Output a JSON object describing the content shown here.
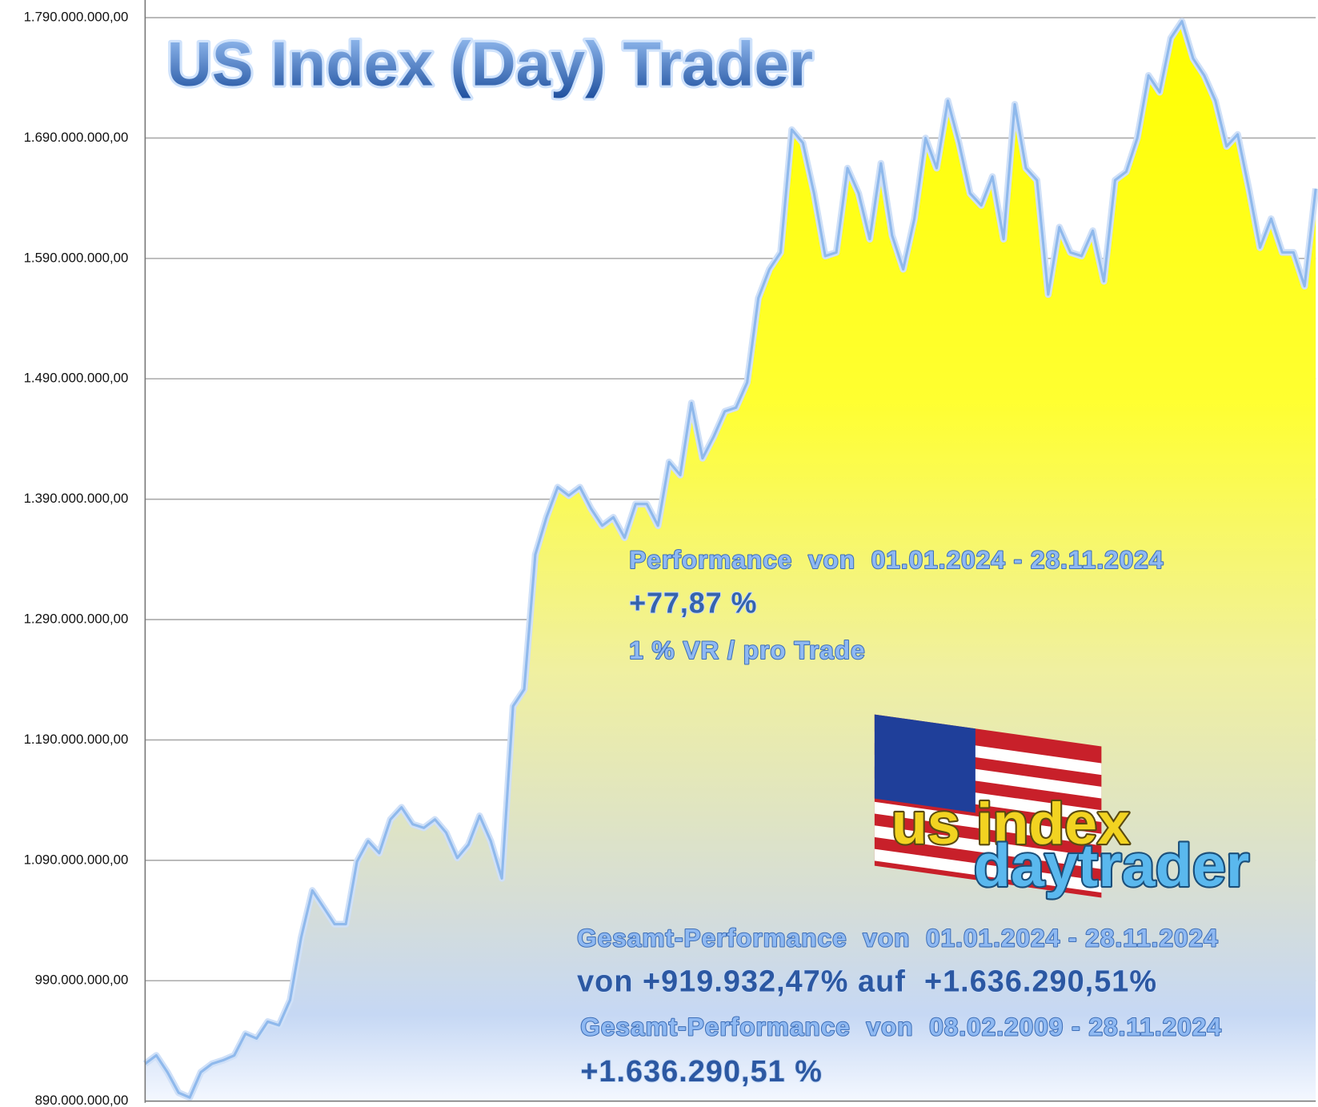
{
  "chart_data": {
    "type": "area",
    "title": "US Index (Day) Trader",
    "values": [
      921000000,
      928000000,
      914000000,
      897000000,
      893000000,
      914000000,
      921000000,
      924000000,
      928000000,
      946000000,
      942000000,
      956000000,
      953000000,
      974000000,
      1026000000,
      1065000000,
      1051000000,
      1037000000,
      1037000000,
      1089000000,
      1106000000,
      1096000000,
      1124000000,
      1134000000,
      1120000000,
      1117000000,
      1124000000,
      1113000000,
      1092000000,
      1103000000,
      1127000000,
      1106000000,
      1075000000,
      1218000000,
      1232000000,
      1344000000,
      1375000000,
      1400000000,
      1393000000,
      1400000000,
      1382000000,
      1368000000,
      1375000000,
      1358000000,
      1386000000,
      1386000000,
      1368000000,
      1421000000,
      1410000000,
      1470000000,
      1424000000,
      1442000000,
      1463000000,
      1466000000,
      1487000000,
      1557000000,
      1581000000,
      1595000000,
      1697000000,
      1686000000,
      1644000000,
      1592000000,
      1595000000,
      1665000000,
      1644000000,
      1606000000,
      1669000000,
      1609000000,
      1581000000,
      1623000000,
      1690000000,
      1665000000,
      1721000000,
      1686000000,
      1644000000,
      1634000000,
      1658000000,
      1606000000,
      1718000000,
      1665000000,
      1655000000,
      1560000000,
      1616000000,
      1595000000,
      1592000000,
      1613000000,
      1571000000,
      1655000000,
      1662000000,
      1690000000,
      1742000000,
      1728000000,
      1773000000,
      1787000000,
      1756000000,
      1742000000,
      1721000000,
      1683000000,
      1693000000,
      1648000000,
      1599000000,
      1623000000,
      1595000000,
      1595000000,
      1567000000,
      1648000000
    ],
    "color": "#8fb9ec",
    "ylim": [
      890000000,
      1790000000
    ],
    "yticks": [
      {
        "value": 890000000,
        "label": "890.000.000,00"
      },
      {
        "value": 990000000,
        "label": "990.000.000,00"
      },
      {
        "value": 1090000000,
        "label": "1.090.000.000,00"
      },
      {
        "value": 1190000000,
        "label": "1.190.000.000,00"
      },
      {
        "value": 1290000000,
        "label": "1.290.000.000,00"
      },
      {
        "value": 1390000000,
        "label": "1.390.000.000,00"
      },
      {
        "value": 1490000000,
        "label": "1.490.000.000,00"
      },
      {
        "value": 1590000000,
        "label": "1.590.000.000,00"
      },
      {
        "value": 1690000000,
        "label": "1.690.000.000,00"
      },
      {
        "value": 1790000000,
        "label": "1.790.000.000,00"
      }
    ],
    "grid": true,
    "annotations": [
      "Performance  von  01.01.2024 - 28.11.2024",
      "+77,87 %",
      "1 % VR / pro Trade",
      "Gesamt-Performance  von  01.01.2024 - 28.11.2024",
      "von +919.932,47% auf  +1.636.290,51%",
      "Gesamt-Performance  von  08.02.2009 - 28.11.2024",
      "+1.636.290,51 %"
    ],
    "logo": [
      "us index",
      "daytrader"
    ]
  }
}
